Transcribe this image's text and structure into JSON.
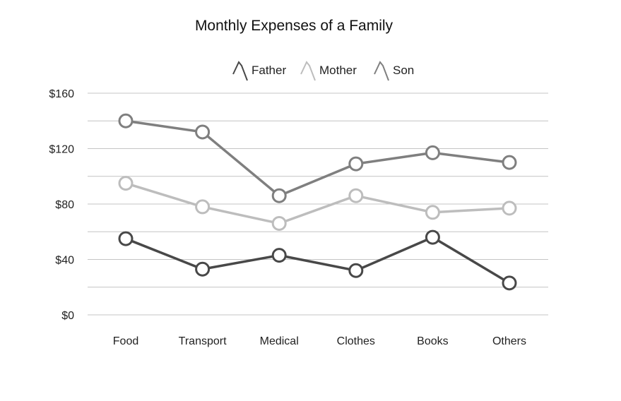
{
  "chart_data": {
    "type": "line",
    "title": "Monthly Expenses of a Family",
    "xlabel": "",
    "ylabel": "",
    "categories": [
      "Food",
      "Transport",
      "Medical",
      "Clothes",
      "Books",
      "Others"
    ],
    "ylim": [
      0,
      160
    ],
    "y_ticks": [
      0,
      40,
      80,
      120,
      160
    ],
    "y_tick_labels": [
      "$0",
      "$40",
      "$80",
      "$120",
      "$160"
    ],
    "y_minor_gridlines": true,
    "grid": true,
    "legend_position": "top",
    "series": [
      {
        "name": "Father",
        "color": "#484848",
        "values": [
          55,
          33,
          43,
          32,
          56,
          23
        ]
      },
      {
        "name": "Mother",
        "color": "#bdbdbd",
        "values": [
          95,
          78,
          66,
          86,
          74,
          77
        ]
      },
      {
        "name": "Son",
        "color": "#7f7f7f",
        "values": [
          140,
          132,
          86,
          109,
          117,
          110
        ]
      }
    ]
  }
}
